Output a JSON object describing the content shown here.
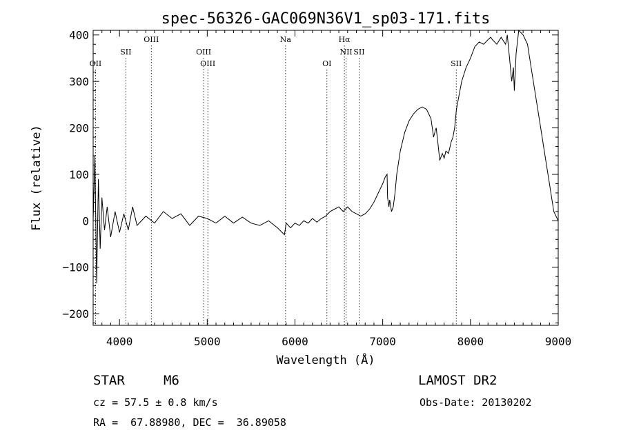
{
  "chart_data": {
    "type": "line",
    "title": "spec-56326-GAC069N36V1_sp03-171.fits",
    "xlabel": "Wavelength (Å)",
    "ylabel": "Flux (relative)",
    "xlim": [
      3700,
      9000
    ],
    "ylim": [
      -225,
      410
    ],
    "x_ticks": [
      4000,
      5000,
      6000,
      7000,
      8000,
      9000
    ],
    "x_tick_labels": [
      "4000",
      "5000",
      "6000",
      "7000",
      "8000",
      "9000"
    ],
    "y_ticks": [
      -200,
      -100,
      0,
      100,
      200,
      300,
      400
    ],
    "y_tick_labels": [
      "−200",
      "−100",
      "0",
      "100",
      "200",
      "300",
      "400"
    ],
    "grid": false,
    "line_color": "#000000",
    "series": [
      {
        "x": [
          3700,
          3720,
          3740,
          3760,
          3780,
          3800,
          3830,
          3860,
          3900,
          3950,
          4000,
          4050,
          4100,
          4150,
          4200,
          4300,
          4400,
          4500,
          4600,
          4700,
          4800,
          4900,
          5000,
          5100,
          5200,
          5300,
          5400,
          5500,
          5600,
          5700,
          5800,
          5880,
          5900,
          5950,
          6000,
          6050,
          6100,
          6150,
          6200,
          6250,
          6300,
          6350,
          6400,
          6450,
          6500,
          6550,
          6600,
          6650,
          6700,
          6750,
          6800,
          6850,
          6900,
          6950,
          7000,
          7030,
          7050,
          7055,
          7070,
          7080,
          7100,
          7120,
          7140,
          7160,
          7200,
          7250,
          7300,
          7350,
          7400,
          7450,
          7500,
          7550,
          7580,
          7600,
          7610,
          7630,
          7650,
          7680,
          7700,
          7720,
          7750,
          7780,
          7800,
          7820,
          7840,
          7860,
          7900,
          7950,
          8000,
          8050,
          8100,
          8150,
          8200,
          8230,
          8250,
          8300,
          8350,
          8400,
          8420,
          8450,
          8470,
          8490,
          8500,
          8520,
          8550,
          8600,
          8650,
          8700,
          8750,
          8800,
          8850,
          8900,
          8950,
          9000
        ],
        "y": [
          0,
          140,
          -135,
          90,
          -60,
          50,
          -20,
          30,
          -35,
          20,
          -25,
          15,
          -20,
          30,
          -10,
          10,
          -5,
          20,
          5,
          15,
          -10,
          10,
          5,
          -5,
          10,
          -5,
          8,
          -5,
          -10,
          0,
          -15,
          -30,
          -5,
          -15,
          -5,
          -10,
          0,
          -5,
          5,
          -3,
          5,
          10,
          20,
          25,
          30,
          20,
          30,
          20,
          15,
          10,
          15,
          25,
          40,
          60,
          80,
          95,
          100,
          50,
          30,
          45,
          20,
          30,
          60,
          100,
          150,
          190,
          215,
          230,
          240,
          245,
          240,
          220,
          180,
          195,
          200,
          165,
          130,
          145,
          135,
          150,
          145,
          170,
          180,
          200,
          240,
          260,
          300,
          330,
          350,
          375,
          385,
          380,
          390,
          395,
          390,
          380,
          395,
          380,
          400,
          340,
          300,
          330,
          280,
          360,
          410,
          400,
          380,
          320,
          260,
          200,
          140,
          80,
          20,
          0
        ]
      }
    ],
    "line_markers": [
      {
        "label": "OII",
        "x": 3727,
        "row": 3
      },
      {
        "label": "SII",
        "x": 4072,
        "row": 2
      },
      {
        "label": "OIII",
        "x": 4363,
        "row": 1
      },
      {
        "label": "OIII",
        "x": 4959,
        "row": 2
      },
      {
        "label": "OIII",
        "x": 5007,
        "row": 3
      },
      {
        "label": "Na",
        "x": 5893,
        "row": 1
      },
      {
        "label": "OI",
        "x": 6364,
        "row": 3
      },
      {
        "label": "Hα",
        "x": 6563,
        "row": 1
      },
      {
        "label": "NII",
        "x": 6583,
        "row": 2
      },
      {
        "label": "SII",
        "x": 6731,
        "row": 2
      },
      {
        "label": "SII",
        "x": 7838,
        "row": 3
      }
    ]
  },
  "info": {
    "object_type": "STAR",
    "subclass": "M6",
    "survey": "LAMOST DR2",
    "cz": "cz = 57.5 ± 0.8 km/s",
    "obs_date": "Obs-Date: 20130202",
    "coords": "RA =  67.88980, DEC =  36.89058"
  }
}
